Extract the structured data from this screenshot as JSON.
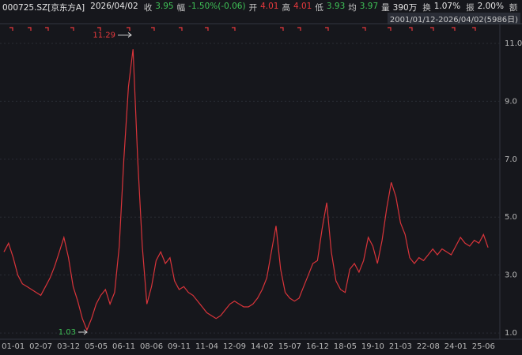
{
  "header": {
    "code": "000725.SZ[京东方A]",
    "date": "2026/04/02",
    "close_label": "收",
    "close": 3.95,
    "change_label": "幅",
    "change": "-1.50%(-0.06)",
    "open_label": "开",
    "open": 4.01,
    "high_label": "高",
    "high": 4.01,
    "low_label": "低",
    "low": 3.93,
    "avg_label": "均",
    "avg": 3.97,
    "volume_label": "量",
    "volume": "390万",
    "turnover_label": "换",
    "turnover": "1.07%",
    "amplitude_label": "振",
    "amplitude": "2.00%",
    "amount_label": "额",
    "range": "2001/01/12-2026/04/02(5986日)"
  },
  "chart_data": {
    "type": "line",
    "categories": [
      null,
      null,
      "01-01",
      null,
      null,
      null,
      null,
      null,
      "02-07",
      null,
      null,
      null,
      null,
      null,
      "03-12",
      null,
      null,
      null,
      null,
      null,
      "05-05",
      null,
      null,
      null,
      null,
      null,
      "06-11",
      null,
      null,
      null,
      null,
      null,
      "08-06",
      null,
      null,
      null,
      null,
      null,
      "09-11",
      null,
      null,
      null,
      null,
      null,
      "11-04",
      null,
      null,
      null,
      null,
      null,
      "12-09",
      null,
      null,
      null,
      null,
      null,
      "14-02",
      null,
      null,
      null,
      null,
      null,
      "15-07",
      null,
      null,
      null,
      null,
      null,
      "16-12",
      null,
      null,
      null,
      null,
      null,
      "18-05",
      null,
      null,
      null,
      null,
      null,
      "19-10",
      null,
      null,
      null,
      null,
      null,
      "21-03",
      null,
      null,
      null,
      null,
      null,
      "22-08",
      null,
      null,
      null,
      null,
      null,
      "24-01",
      null,
      null,
      null,
      null,
      null,
      "25-06",
      null
    ],
    "series": [
      {
        "color": "#d9343a",
        "values": [
          3.8,
          4.1,
          3.6,
          3.0,
          2.7,
          2.6,
          2.5,
          2.4,
          2.3,
          2.6,
          2.9,
          3.3,
          3.8,
          4.3,
          3.6,
          2.6,
          2.1,
          1.5,
          1.1,
          1.5,
          2.0,
          2.3,
          2.5,
          2.0,
          2.4,
          4.0,
          7.0,
          9.5,
          10.8,
          7.0,
          4.0,
          2.0,
          2.6,
          3.5,
          3.8,
          3.4,
          3.6,
          2.8,
          2.5,
          2.6,
          2.4,
          2.3,
          2.1,
          1.9,
          1.7,
          1.6,
          1.5,
          1.6,
          1.8,
          2.0,
          2.1,
          2.0,
          1.9,
          1.9,
          2.0,
          2.2,
          2.5,
          2.9,
          3.8,
          4.7,
          3.2,
          2.4,
          2.2,
          2.1,
          2.2,
          2.6,
          3.0,
          3.4,
          3.5,
          4.6,
          5.5,
          3.8,
          2.8,
          2.5,
          2.4,
          3.2,
          3.4,
          3.1,
          3.5,
          4.3,
          4.0,
          3.4,
          4.2,
          5.3,
          6.2,
          5.7,
          4.8,
          4.4,
          3.6,
          3.4,
          3.6,
          3.5,
          3.7,
          3.9,
          3.7,
          3.9,
          3.8,
          3.7,
          4.0,
          4.3,
          4.1,
          4.0,
          4.2,
          4.1,
          4.4,
          3.95
        ]
      }
    ],
    "annotations": {
      "max": 11.29,
      "min": 1.03
    },
    "ylim": [
      0.73,
      11.68
    ],
    "yticks": [
      {
        "value": 1,
        "label": "1.0"
      },
      {
        "value": 3,
        "label": "3.0"
      },
      {
        "value": 5,
        "label": "5.0"
      },
      {
        "value": 7,
        "label": "7.0"
      },
      {
        "value": 9,
        "label": "9.0"
      },
      {
        "value": 11,
        "label": "11.0"
      }
    ],
    "grid": true
  }
}
